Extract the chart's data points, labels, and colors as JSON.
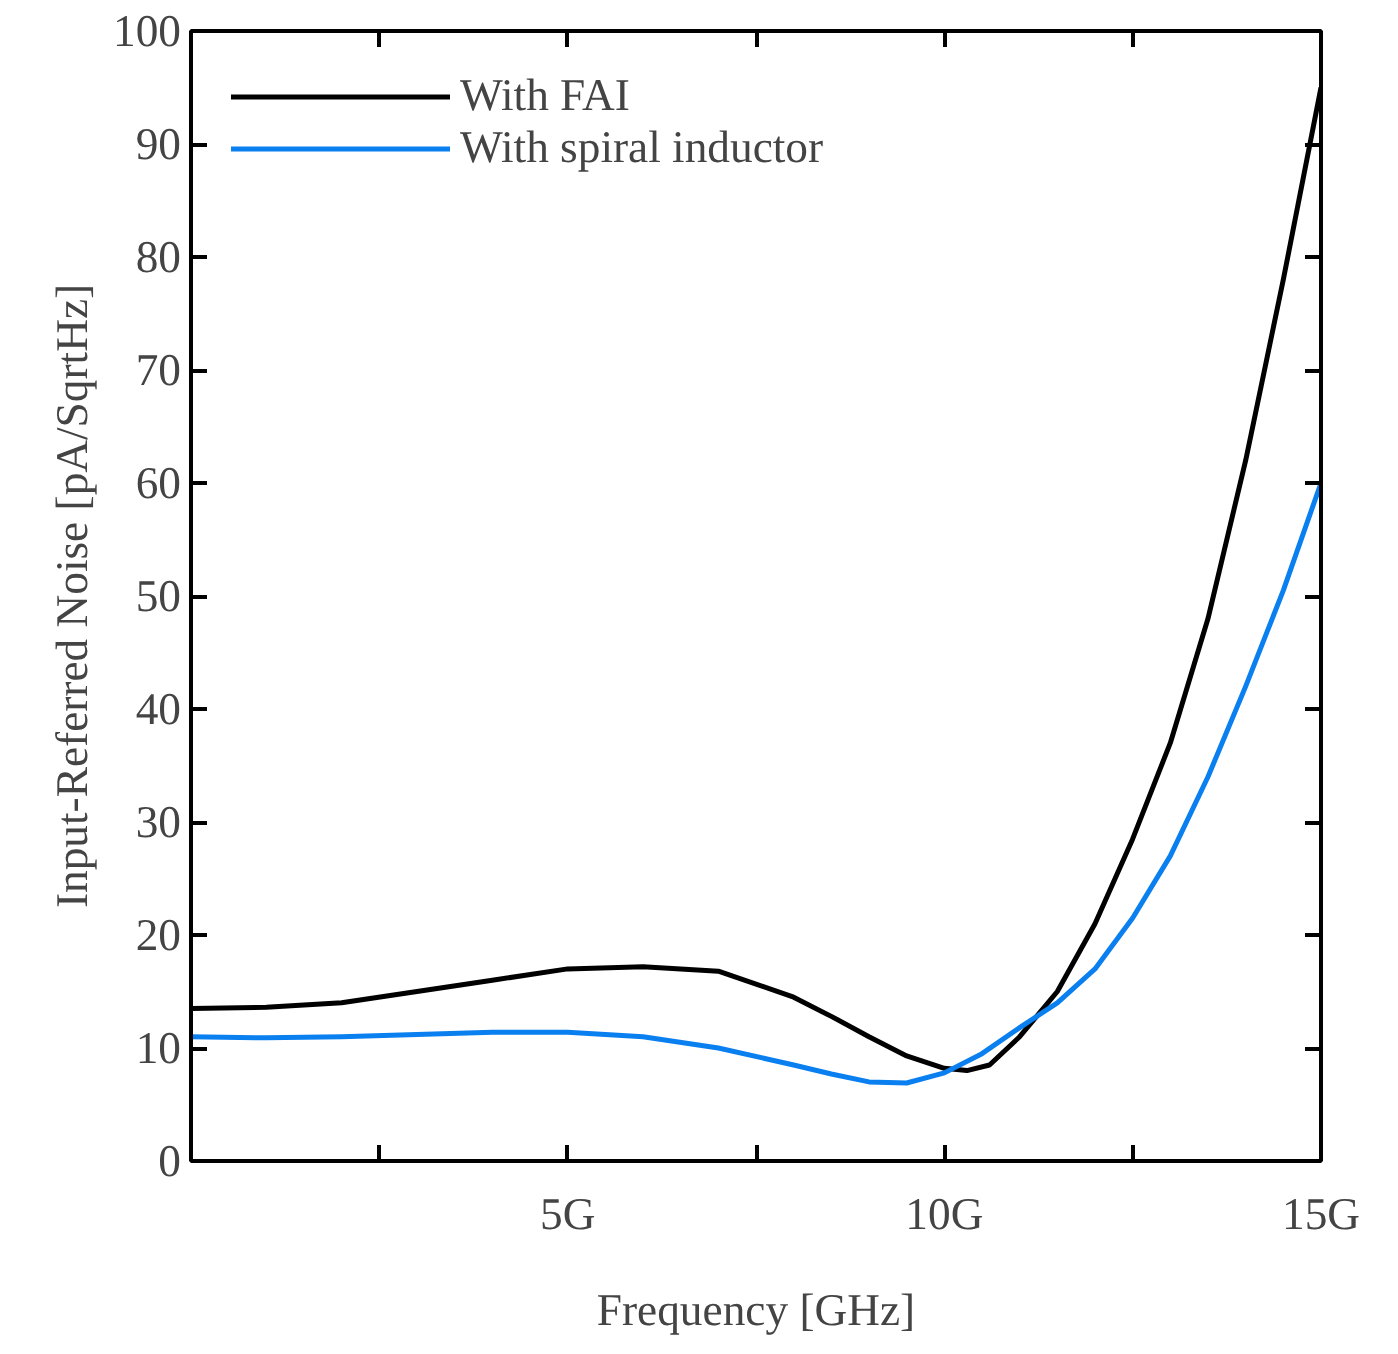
{
  "chart_data": {
    "type": "line",
    "xlabel": "Frequency [GHz]",
    "ylabel": "Input-Referred Noise [pA/SqrtHz]",
    "xlim": [
      0,
      15
    ],
    "ylim": [
      0,
      100
    ],
    "xticks": [
      {
        "value": 2.5,
        "label": null
      },
      {
        "value": 5,
        "label": "5G"
      },
      {
        "value": 7.5,
        "label": null
      },
      {
        "value": 10,
        "label": "10G"
      },
      {
        "value": 12.5,
        "label": null
      },
      {
        "value": 15,
        "label": "15G"
      }
    ],
    "yticks": [
      0,
      10,
      20,
      30,
      40,
      50,
      60,
      70,
      80,
      90,
      100
    ],
    "grid": false,
    "legend": "top left",
    "marker": "none",
    "line_style": "solid",
    "series": [
      {
        "name": "With FAI",
        "color": "#000000",
        "x": [
          0,
          1,
          2,
          3,
          4,
          5,
          6,
          7,
          8,
          8.5,
          9,
          9.5,
          10,
          10.3,
          10.6,
          11,
          11.5,
          12,
          12.5,
          13,
          13.5,
          14,
          14.5,
          15
        ],
        "values": [
          13.5,
          13.6,
          14,
          15,
          16,
          17,
          17.2,
          16.8,
          14.5,
          12.8,
          11,
          9.3,
          8.2,
          8,
          8.5,
          11,
          15,
          21,
          28.5,
          37,
          48,
          62,
          78,
          95
        ]
      },
      {
        "name": "With spiral inductor",
        "color": "#0a7ff0",
        "x": [
          0,
          1,
          2,
          3,
          4,
          5,
          6,
          7,
          8,
          8.5,
          9,
          9.5,
          10,
          10.5,
          11,
          11.5,
          12,
          12.5,
          13,
          13.5,
          14,
          14.5,
          15
        ],
        "values": [
          11,
          10.9,
          11,
          11.2,
          11.4,
          11.4,
          11,
          10,
          8.5,
          7.7,
          7,
          6.9,
          7.8,
          9.5,
          11.8,
          14,
          17,
          21.5,
          27,
          34,
          42,
          50.5,
          60
        ]
      }
    ]
  }
}
